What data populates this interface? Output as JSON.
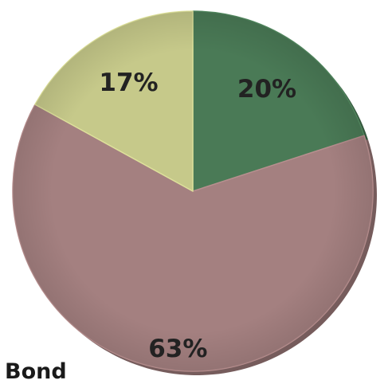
{
  "chart_data": {
    "type": "pie",
    "title": "",
    "slices": [
      {
        "label": "20%",
        "value": 20,
        "color": "#4a7a56"
      },
      {
        "label": "63%",
        "value": 63,
        "color": "#a48080"
      },
      {
        "label": "17%",
        "value": 17,
        "color": "#c6c98a"
      }
    ],
    "start_angle": "12 o'clock, clockwise",
    "legend_text": "Bond"
  }
}
